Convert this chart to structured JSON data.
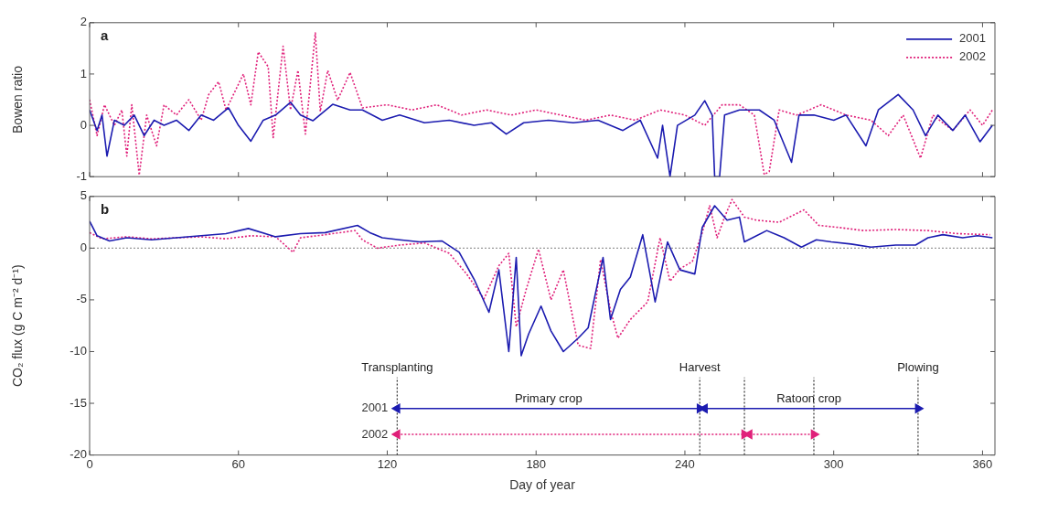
{
  "chart_data": [
    {
      "type": "line",
      "ylabel": "Bowen ratio",
      "xlim": [
        0,
        365
      ],
      "xticks": [
        0,
        60,
        120,
        180,
        240,
        300,
        360
      ],
      "ylim": [
        -1,
        2
      ],
      "yticks": [
        -1,
        0,
        1,
        2
      ],
      "tick_labels": "y",
      "legend": "top right",
      "grid": false,
      "marker": "none",
      "annotations": [
        "a"
      ],
      "series": [
        {
          "name": "2001",
          "color": "#1c1cb0",
          "line_style": "solid",
          "x": [
            0,
            3,
            5,
            7,
            10,
            14,
            18,
            22,
            26,
            30,
            35,
            40,
            45,
            50,
            56,
            60,
            65,
            70,
            75,
            81,
            85,
            90,
            98,
            105,
            110,
            118,
            125,
            135,
            145,
            155,
            162,
            168,
            175,
            185,
            195,
            205,
            215,
            222,
            229,
            231,
            234,
            237,
            244,
            248,
            251,
            252,
            254,
            256,
            262,
            270,
            276,
            283,
            286,
            292,
            300,
            305,
            313,
            318,
            326,
            332,
            337,
            342,
            348,
            353,
            359,
            364
          ],
          "values": [
            0.3,
            -0.1,
            0.2,
            -0.6,
            0.1,
            0.0,
            0.2,
            -0.2,
            0.1,
            0.0,
            0.1,
            -0.1,
            0.2,
            0.1,
            0.34,
            0.0,
            -0.31,
            0.1,
            0.2,
            0.45,
            0.2,
            0.09,
            0.41,
            0.3,
            0.3,
            0.1,
            0.2,
            0.05,
            0.1,
            0.0,
            0.05,
            -0.17,
            0.05,
            0.1,
            0.05,
            0.1,
            -0.1,
            0.1,
            -0.64,
            0.0,
            -1,
            0.0,
            0.2,
            0.48,
            0.2,
            -1,
            -1,
            0.2,
            0.3,
            0.3,
            0.1,
            -0.72,
            0.2,
            0.2,
            0.1,
            0.2,
            -0.4,
            0.3,
            0.6,
            0.3,
            -0.2,
            0.2,
            -0.1,
            0.2,
            -0.32,
            0.0
          ]
        },
        {
          "name": "2002",
          "color": "#e0207a",
          "line_style": "dotted",
          "x": [
            0,
            3,
            6,
            10,
            13,
            15,
            17,
            20,
            23,
            27,
            30,
            35,
            40,
            45,
            48,
            52,
            55,
            58,
            62,
            65,
            68,
            72,
            74,
            78,
            81,
            84,
            87,
            91,
            93,
            96,
            100,
            105,
            110,
            120,
            130,
            140,
            150,
            160,
            170,
            180,
            190,
            200,
            210,
            220,
            230,
            240,
            248,
            255,
            262,
            268,
            272,
            274,
            278,
            285,
            295,
            305,
            315,
            322,
            328,
            335,
            340,
            348,
            355,
            360,
            364
          ],
          "values": [
            0.5,
            -0.2,
            0.4,
            0.0,
            0.3,
            -0.6,
            0.4,
            -0.97,
            0.2,
            -0.4,
            0.4,
            0.2,
            0.5,
            0.1,
            0.6,
            0.85,
            0.3,
            0.6,
            1.0,
            0.4,
            1.43,
            1.14,
            -0.24,
            1.54,
            0.3,
            1.07,
            -0.17,
            1.8,
            0.27,
            1.07,
            0.49,
            1.03,
            0.34,
            0.4,
            0.3,
            0.4,
            0.2,
            0.3,
            0.2,
            0.3,
            0.2,
            0.1,
            0.2,
            0.1,
            0.3,
            0.2,
            0.0,
            0.4,
            0.4,
            0.2,
            -0.96,
            -0.9,
            0.3,
            0.2,
            0.4,
            0.2,
            0.1,
            -0.2,
            0.2,
            -0.64,
            0.2,
            -0.1,
            0.3,
            0.0,
            0.3
          ]
        }
      ]
    },
    {
      "type": "line",
      "xlabel": "Day of year",
      "ylabel": "CO₂ flux (g C m⁻² d⁻¹)",
      "xlim": [
        0,
        365
      ],
      "xticks": [
        0,
        60,
        120,
        180,
        240,
        300,
        360
      ],
      "ylim": [
        -20,
        5
      ],
      "yticks": [
        -20,
        -15,
        -10,
        -5,
        0,
        5
      ],
      "legend": false,
      "grid": false,
      "marker": "none",
      "annotations": [
        "b",
        {
          "text": "Transplanting",
          "x": 124,
          "y": -12.5
        },
        {
          "text": "Harvest",
          "x": 246,
          "y": -12.5
        },
        {
          "text": "Plowing",
          "x": 334,
          "y": -12.5
        },
        {
          "text": "Primary crop",
          "x": 185,
          "y": -15.5
        },
        {
          "text": "Ratoon crop",
          "x": 290,
          "y": -15.5
        }
      ],
      "ref_lines": [
        {
          "axis": "y",
          "value": 0,
          "color": "#999999",
          "line_style": "dotted"
        },
        {
          "axis": "x",
          "value": 124,
          "color": "#333333",
          "line_style": "dotted"
        },
        {
          "axis": "x",
          "value": 246,
          "color": "#333333",
          "line_style": "dotted"
        },
        {
          "axis": "x",
          "value": 264,
          "color": "#333333",
          "line_style": "dotted"
        },
        {
          "axis": "x",
          "value": 292,
          "color": "#333333",
          "line_style": "dotted"
        },
        {
          "axis": "x",
          "value": 334,
          "color": "#333333",
          "line_style": "dotted"
        }
      ],
      "series": [
        {
          "color": "#1c1cb0",
          "line_style": "solid",
          "x": [
            0,
            3,
            8,
            15,
            25,
            35,
            45,
            55,
            64,
            75,
            85,
            95,
            108,
            113,
            118,
            125,
            133,
            142,
            149,
            155,
            161,
            165,
            169,
            172,
            174,
            177,
            182,
            186,
            191,
            197,
            201,
            207,
            210,
            214,
            218,
            223,
            228,
            233,
            238,
            244,
            247,
            252,
            257,
            262,
            264,
            273,
            280,
            287,
            293,
            299,
            307,
            315,
            325,
            333,
            338,
            344,
            352,
            358,
            364
          ],
          "values": [
            2.6,
            1.2,
            0.7,
            1.0,
            0.8,
            1.0,
            1.2,
            1.4,
            1.9,
            1.1,
            1.4,
            1.5,
            2.2,
            1.5,
            1.0,
            0.8,
            0.6,
            0.7,
            -0.4,
            -3.0,
            -6.2,
            -2.1,
            -10,
            -0.9,
            -10.4,
            -8.3,
            -5.6,
            -8.0,
            -10,
            -8.7,
            -7.7,
            -0.9,
            -6.9,
            -4.0,
            -2.8,
            1.3,
            -5.2,
            0.6,
            -2.1,
            -2.5,
            2.0,
            4.1,
            2.7,
            3.0,
            0.6,
            1.7,
            1.0,
            0.1,
            0.8,
            0.6,
            0.4,
            0.1,
            0.3,
            0.3,
            1.0,
            1.3,
            1.0,
            1.2,
            1.0
          ]
        },
        {
          "color": "#e0207a",
          "line_style": "dotted",
          "x": [
            0,
            5,
            15,
            25,
            35,
            45,
            55,
            65,
            75,
            82,
            85,
            95,
            107,
            110,
            116,
            125,
            135,
            145,
            152,
            159,
            165,
            169,
            172,
            176,
            181,
            186,
            191,
            197,
            202,
            206,
            210,
            213,
            218,
            225,
            230,
            234,
            238,
            243,
            247,
            250,
            253,
            256,
            259,
            264,
            269,
            278,
            288,
            294,
            302,
            312,
            325,
            338,
            350,
            363
          ],
          "values": [
            1.5,
            0.9,
            1.1,
            0.9,
            1.0,
            1.1,
            0.9,
            1.2,
            1.1,
            -0.4,
            1.0,
            1.3,
            1.7,
            0.8,
            0.0,
            0.3,
            0.5,
            -0.5,
            -2.5,
            -4.9,
            -1.7,
            -0.5,
            -7.6,
            -4.0,
            -0.1,
            -5.0,
            -2.1,
            -9.4,
            -9.7,
            -1.1,
            -6.0,
            -8.7,
            -6.9,
            -5.2,
            1.0,
            -3.2,
            -2.0,
            -1.3,
            1.5,
            4.1,
            1.0,
            3.0,
            4.7,
            3.0,
            2.7,
            2.5,
            3.7,
            2.2,
            2.0,
            1.7,
            1.8,
            1.7,
            1.4,
            1.3
          ]
        },
        {
          "name": "2001",
          "color": "#1c1cb0",
          "line_style": "solid",
          "marker": "triangle",
          "x": [
            124,
            246
          ],
          "values": [
            -15.5,
            -15.5
          ]
        },
        {
          "color": "#1c1cb0",
          "line_style": "solid",
          "marker": "triangle",
          "x": [
            248,
            334
          ],
          "values": [
            -15.5,
            -15.5
          ]
        },
        {
          "name": "2002",
          "color": "#e0207a",
          "line_style": "dotted",
          "marker": "triangle",
          "x": [
            124,
            264
          ],
          "values": [
            -18,
            -18
          ]
        },
        {
          "color": "#e0207a",
          "line_style": "dotted",
          "marker": "triangle",
          "x": [
            266,
            292
          ],
          "values": [
            -18,
            -18
          ]
        }
      ]
    }
  ]
}
